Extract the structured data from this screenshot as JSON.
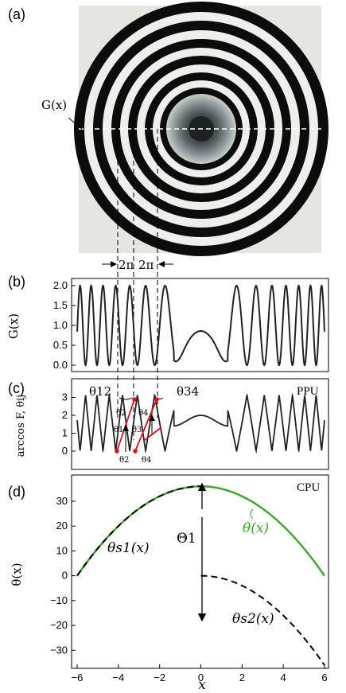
{
  "panels": {
    "a": {
      "label": "(a)",
      "g_label": "G(x)"
    },
    "b": {
      "label": "(b)",
      "ylabel": "G(x)",
      "yticks": [
        "2.0",
        "1.5",
        "1.0",
        "0.5",
        "0.0"
      ],
      "period_labels": [
        "2π",
        "2π"
      ]
    },
    "c": {
      "label": "(c)",
      "ylabel": "arccos F, θij",
      "corner": "PPU",
      "yticks": [
        "3",
        "2",
        "1",
        "0"
      ],
      "theta12": "θ12",
      "theta34": "θ34",
      "point_labels": [
        "θ2",
        "θ1",
        "θ3",
        "θ4",
        "θ2",
        "θ4"
      ]
    },
    "d": {
      "label": "(d)",
      "ylabel": "θ(x)",
      "corner": "CPU",
      "xlabel": "x",
      "yticks": [
        "30",
        "20",
        "10",
        "0",
        "−10",
        "−20",
        "−30"
      ],
      "xticks": [
        "−6",
        "−4",
        "−2",
        "0",
        "2",
        "4",
        "6"
      ],
      "Theta1": "Θ1",
      "theta_x": "θ(x)",
      "theta_s1": "θs1(x)",
      "theta_s2": "θs2(x)"
    }
  },
  "colors": {
    "green": "#3aa627",
    "red": "#e0111b",
    "curve": "#222222"
  },
  "chart_data": [
    {
      "type": "line",
      "title": "",
      "xlabel": "",
      "ylabel": "G(x)",
      "xlim": [
        -6,
        6
      ],
      "ylim": [
        0,
        2.0
      ],
      "function": "1 + cos(sqrt(x^4 - 4x^2 + ...)) ring pattern",
      "series": [
        {
          "name": "G(x)"
        }
      ]
    },
    {
      "type": "line",
      "title": "",
      "xlabel": "",
      "ylabel": "arccos F, θij",
      "xlim": [
        -6,
        6
      ],
      "ylim": [
        -0.3,
        3.5
      ]
    },
    {
      "type": "line",
      "title": "",
      "xlabel": "x",
      "ylabel": "θ(x)",
      "xlim": [
        -6,
        6
      ],
      "ylim": [
        -36,
        38
      ],
      "series": [
        {
          "name": "θ(x)",
          "x": [
            -6,
            -4,
            -2,
            0,
            2,
            4,
            6
          ],
          "values": [
            0,
            20,
            32,
            36,
            32,
            20,
            0
          ]
        },
        {
          "name": "θs1(x)",
          "x": [
            -6,
            -4,
            -2,
            0
          ],
          "values": [
            0,
            20,
            32,
            36
          ]
        },
        {
          "name": "θs2(x)",
          "x": [
            0,
            2,
            4,
            6
          ],
          "values": [
            0,
            -4,
            -16,
            -36
          ]
        }
      ]
    }
  ]
}
